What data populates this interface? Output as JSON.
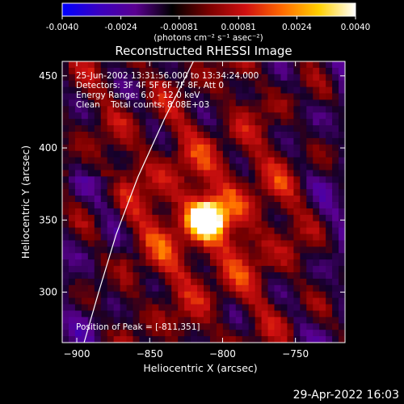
{
  "colorbar": {
    "tick_labels": [
      "-0.0040",
      "-0.0024",
      "-0.00081",
      "0.00081",
      "0.0024",
      "0.0040"
    ],
    "tick_values": [
      -0.004,
      -0.0024,
      -0.00081,
      0.00081,
      0.0024,
      0.004
    ],
    "range": [
      -0.004,
      0.004
    ],
    "units_text": "(photons cm⁻² s⁻¹ asec⁻²)",
    "colors": [
      "#0000ff",
      "#3a00c0",
      "#5a0090",
      "#000000",
      "#7a0000",
      "#d01010",
      "#ff6a00",
      "#ffd000",
      "#ffffff"
    ]
  },
  "chart_data": {
    "type": "heatmap",
    "title": "Reconstructed RHESSI Image",
    "xlabel": "Heliocentric X (arcsec)",
    "ylabel": "Heliocentric Y (arcsec)",
    "xlim": [
      -910,
      -716
    ],
    "ylim": [
      265,
      460
    ],
    "xticks": [
      -900,
      -850,
      -800,
      -750
    ],
    "yticks": [
      300,
      350,
      400,
      450
    ],
    "xtick_labels": [
      "−900",
      "−850",
      "−800",
      "−750"
    ],
    "ytick_labels": [
      "300",
      "350",
      "400",
      "450"
    ],
    "annotations": [
      "25-Jun-2002 13:31:56.000 to 13:34:24.000",
      "Detectors: 3F 4F 5F 6F 7F 8F, Att 0",
      "Energy Range: 6.0 - 12.0 keV",
      "Clean    Total counts: 8.08E+03"
    ],
    "peak_label": "Position of Peak = [-811,351]",
    "peak": [
      -811,
      351
    ],
    "limb_points": [
      [
        -895,
        265
      ],
      [
        -885,
        300
      ],
      [
        -873,
        340
      ],
      [
        -858,
        380
      ],
      [
        -840,
        420
      ],
      [
        -820,
        460
      ]
    ],
    "limb_color": "#ffffff"
  },
  "footer": {
    "timestamp": "29-Apr-2022 16:03"
  }
}
